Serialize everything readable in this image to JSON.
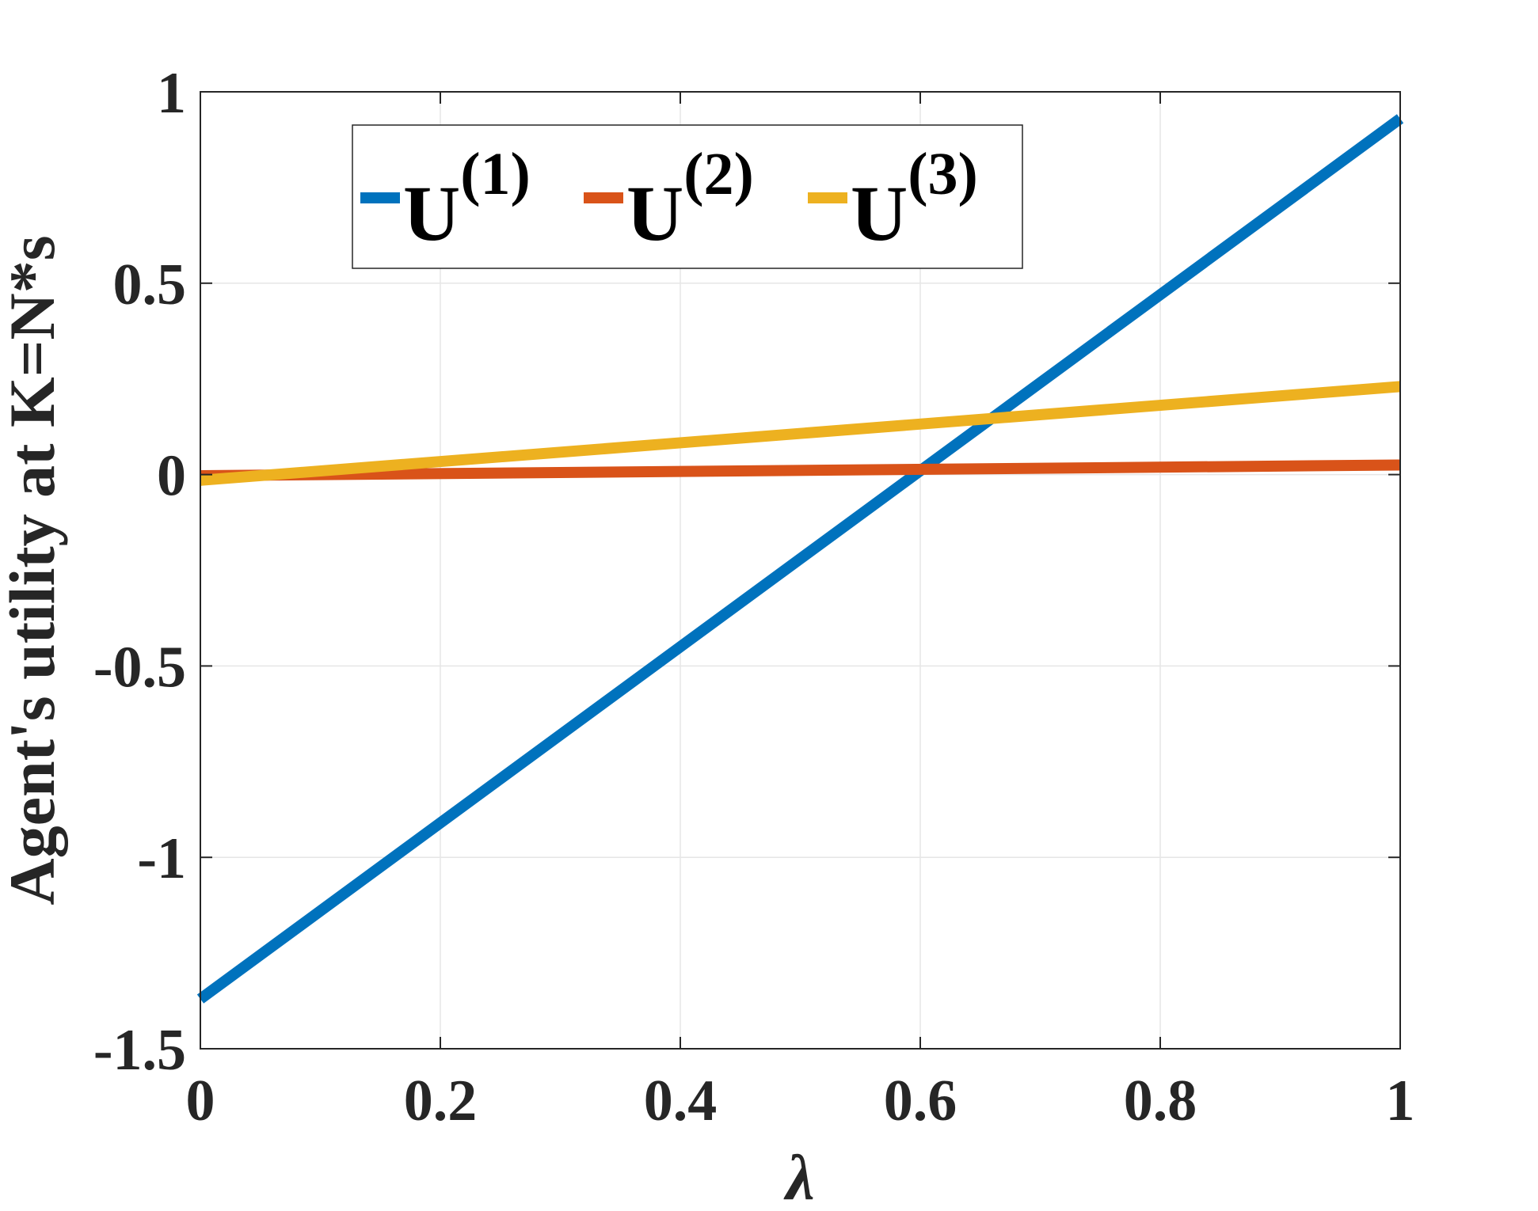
{
  "chart_data": {
    "type": "line",
    "xlabel": "λ",
    "ylabel": "Agent's utility at K=N*s",
    "xlim": [
      0,
      1
    ],
    "ylim": [
      -1.5,
      1
    ],
    "xticks": [
      0,
      0.2,
      0.4,
      0.6,
      0.8,
      1
    ],
    "yticks": [
      -1.5,
      -1,
      -0.5,
      0,
      0.5,
      1
    ],
    "xtick_labels": [
      "0",
      "0.2",
      "0.4",
      "0.6",
      "0.8",
      "1"
    ],
    "ytick_labels": [
      "-1.5",
      "-1",
      "-0.5",
      "0",
      "0.5",
      "1"
    ],
    "grid": true,
    "legend_position": "top",
    "series": [
      {
        "name": "U",
        "superscript": "(1)",
        "color": "#0072BD",
        "x": [
          0,
          1
        ],
        "y": [
          -1.37,
          0.93
        ]
      },
      {
        "name": "U",
        "superscript": "(2)",
        "color": "#D95319",
        "x": [
          0,
          1
        ],
        "y": [
          -0.003,
          0.025
        ]
      },
      {
        "name": "U",
        "superscript": "(3)",
        "color": "#EDB120",
        "x": [
          0,
          1
        ],
        "y": [
          -0.015,
          0.23
        ]
      }
    ]
  }
}
